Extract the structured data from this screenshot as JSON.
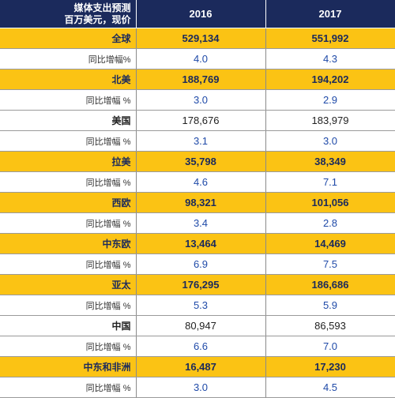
{
  "header": {
    "title_line1": "媒体支出预测",
    "title_line2": "百万美元，现价",
    "years": [
      "2016",
      "2017"
    ]
  },
  "rows": [
    {
      "type": "region",
      "label": "全球",
      "values": [
        "529,134",
        "551,992"
      ]
    },
    {
      "type": "growth",
      "label": "同比增幅%",
      "values": [
        "4.0",
        "4.3"
      ]
    },
    {
      "type": "region",
      "label": "北美",
      "values": [
        "188,769",
        "194,202"
      ]
    },
    {
      "type": "growth",
      "label": "同比增幅 %",
      "values": [
        "3.0",
        "2.9"
      ]
    },
    {
      "type": "country",
      "label": "美国",
      "values": [
        "178,676",
        "183,979"
      ]
    },
    {
      "type": "growth",
      "label": "同比增幅 %",
      "values": [
        "3.1",
        "3.0"
      ]
    },
    {
      "type": "region",
      "label": "拉美",
      "values": [
        "35,798",
        "38,349"
      ]
    },
    {
      "type": "growth",
      "label": "同比增幅 %",
      "values": [
        "4.6",
        "7.1"
      ]
    },
    {
      "type": "region",
      "label": "西欧",
      "values": [
        "98,321",
        "101,056"
      ]
    },
    {
      "type": "growth",
      "label": "同比增幅 %",
      "values": [
        "3.4",
        "2.8"
      ]
    },
    {
      "type": "region",
      "label": "中东欧",
      "values": [
        "13,464",
        "14,469"
      ]
    },
    {
      "type": "growth",
      "label": "同比增幅 %",
      "values": [
        "6.9",
        "7.5"
      ]
    },
    {
      "type": "region",
      "label": "亚太",
      "values": [
        "176,295",
        "186,686"
      ]
    },
    {
      "type": "growth",
      "label": "同比增幅 %",
      "values": [
        "5.3",
        "5.9"
      ]
    },
    {
      "type": "country",
      "label": "中国",
      "values": [
        "80,947",
        "86,593"
      ]
    },
    {
      "type": "growth",
      "label": "同比增幅 %",
      "values": [
        "6.6",
        "7.0"
      ]
    },
    {
      "type": "region",
      "label": "中东和非洲",
      "values": [
        "16,487",
        "17,230"
      ]
    },
    {
      "type": "growth",
      "label": "同比增幅 %",
      "values": [
        "3.0",
        "4.5"
      ]
    }
  ],
  "colors": {
    "header_bg": "#1b2a5c",
    "region_bg": "#fbc314",
    "growth_text": "#1f4aa8"
  }
}
